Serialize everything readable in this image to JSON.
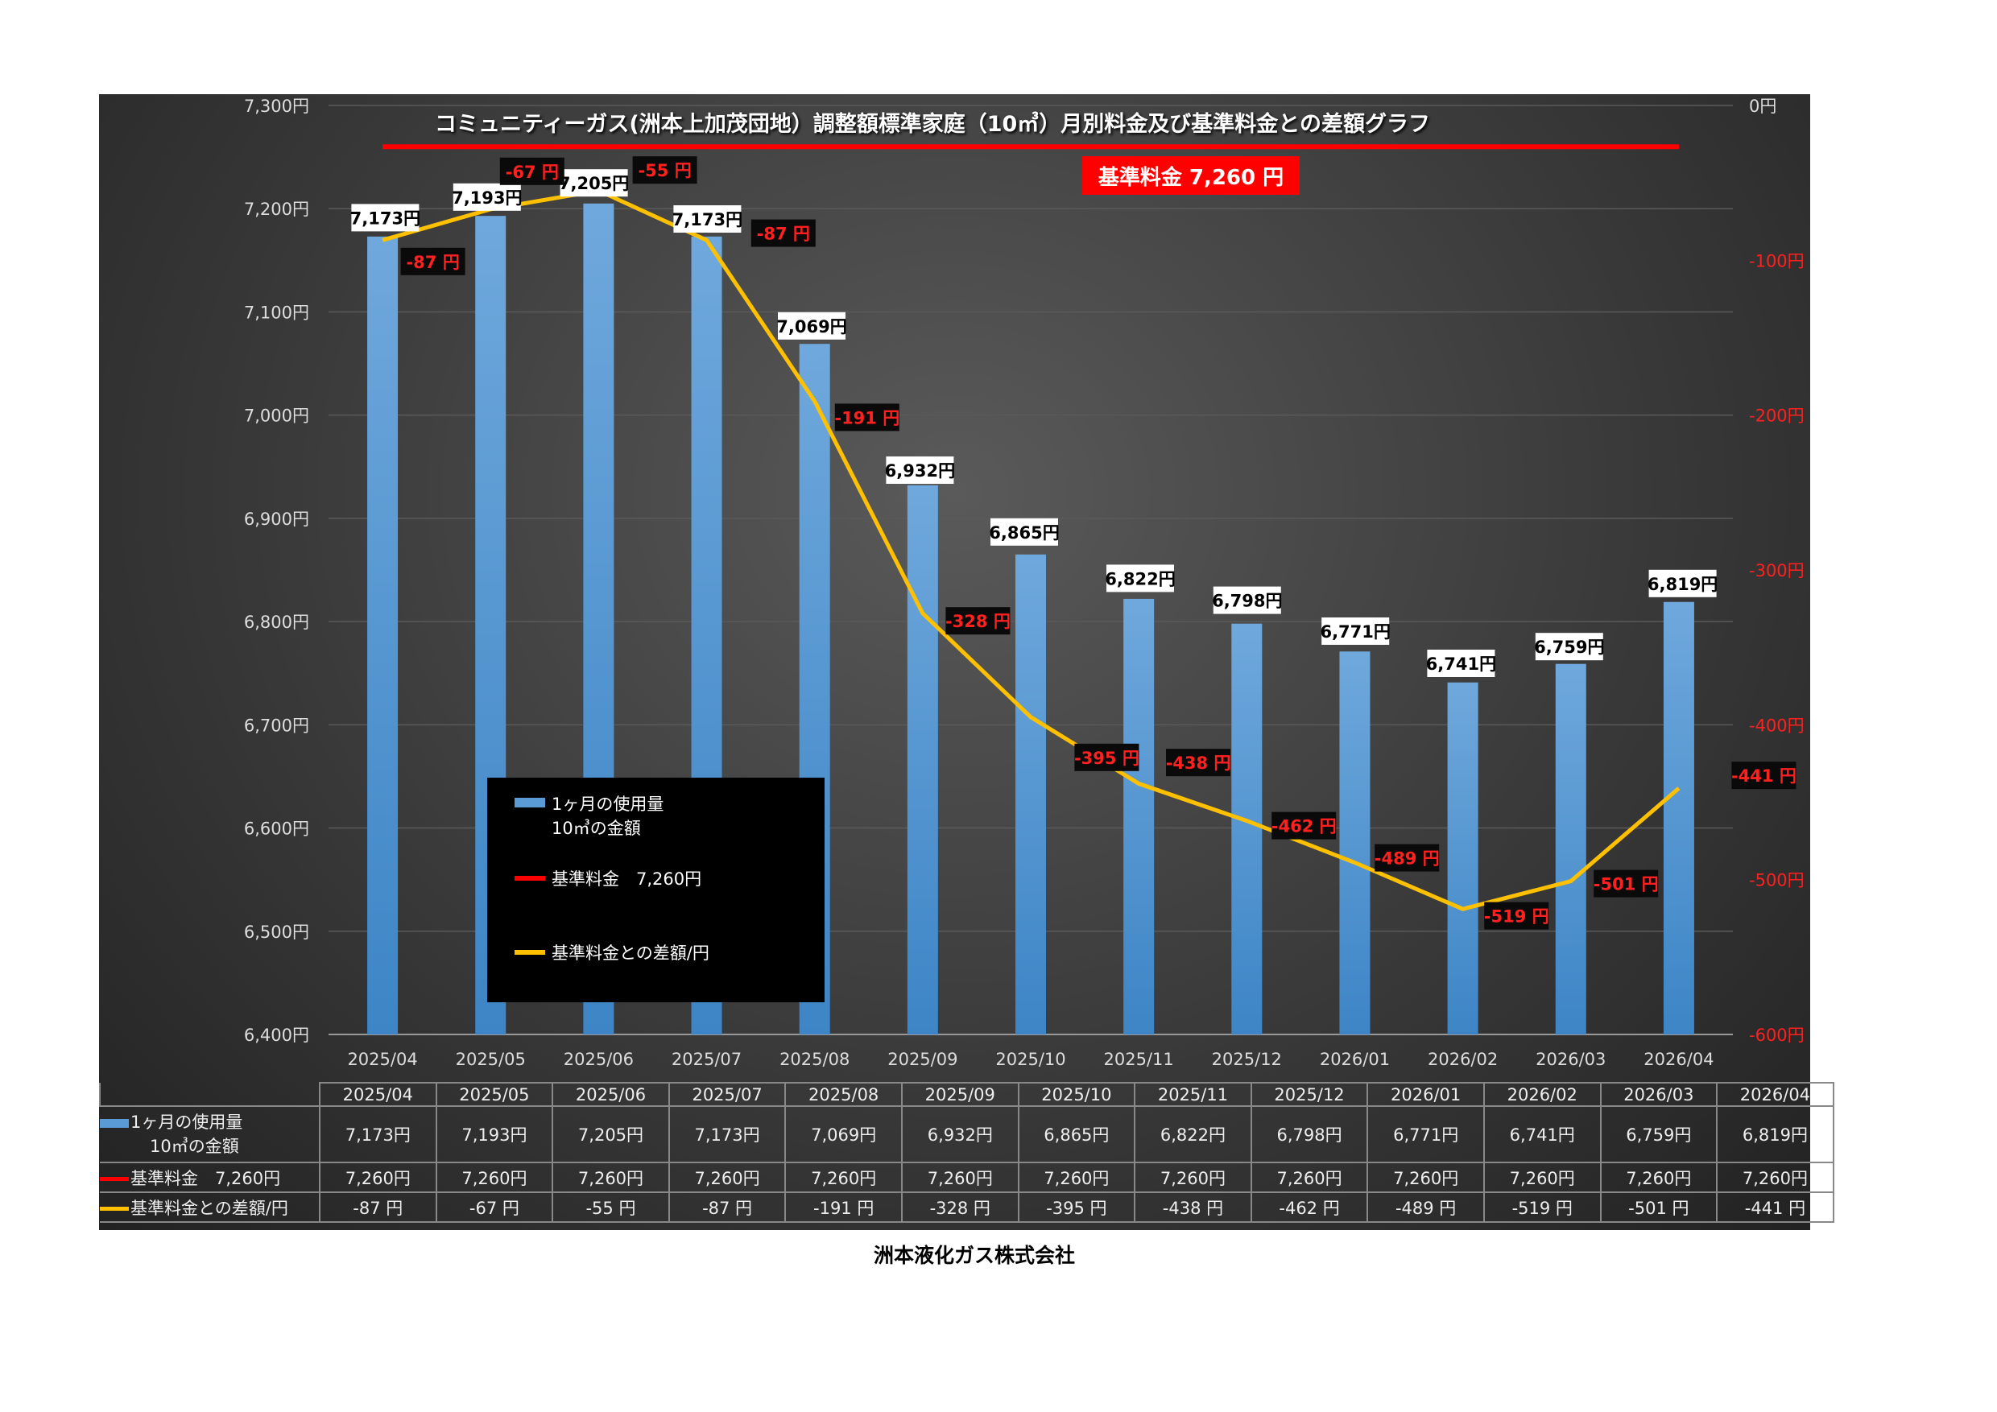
{
  "chart_data": {
    "type": "bar+line",
    "title": "コミュニティーガス(洲本上加茂団地）調整額標準家庭（10㎥）月別料金及び基準料金との差額グラフ",
    "categories": [
      "2025/04",
      "2025/05",
      "2025/06",
      "2025/07",
      "2025/08",
      "2025/09",
      "2025/10",
      "2025/11",
      "2025/12",
      "2026/01",
      "2026/02",
      "2026/03",
      "2026/04"
    ],
    "series": [
      {
        "name": "1ヶ月の使用量 10㎥の金額",
        "type": "bar",
        "axis": "left",
        "color": "#5b9bd5",
        "values": [
          7173,
          7193,
          7205,
          7173,
          7069,
          6932,
          6865,
          6822,
          6798,
          6771,
          6741,
          6759,
          6819
        ],
        "labels": [
          "7,173円",
          "7,193円",
          "7,205円",
          "7,173円",
          "7,069円",
          "6,932円",
          "6,865円",
          "6,822円",
          "6,798円",
          "6,771円",
          "6,741円",
          "6,759円",
          "6,819円"
        ]
      },
      {
        "name": "基準料金　7,260円",
        "type": "line",
        "axis": "left",
        "color": "#ff0000",
        "values": [
          7260,
          7260,
          7260,
          7260,
          7260,
          7260,
          7260,
          7260,
          7260,
          7260,
          7260,
          7260,
          7260
        ],
        "labels": [
          "7,260円",
          "7,260円",
          "7,260円",
          "7,260円",
          "7,260円",
          "7,260円",
          "7,260円",
          "7,260円",
          "7,260円",
          "7,260円",
          "7,260円",
          "7,260円",
          "7,260円"
        ]
      },
      {
        "name": "基準料金との差額/円",
        "type": "line",
        "axis": "right",
        "color": "#ffc000",
        "values": [
          -87,
          -67,
          -55,
          -87,
          -191,
          -328,
          -395,
          -438,
          -462,
          -489,
          -519,
          -501,
          -441
        ],
        "labels": [
          "-87 円",
          "-67 円",
          "-55 円",
          "-87 円",
          "-191 円",
          "-328 円",
          "-395 円",
          "-438 円",
          "-462 円",
          "-489 円",
          "-519 円",
          "-501 円",
          "-441 円"
        ]
      }
    ],
    "left_axis": {
      "ylim": [
        6400,
        7300
      ],
      "ticks": [
        "6,400円",
        "6,500円",
        "6,600円",
        "6,700円",
        "6,800円",
        "6,900円",
        "7,000円",
        "7,100円",
        "7,200円",
        "7,300円"
      ]
    },
    "right_axis": {
      "ylim": [
        -600,
        0
      ],
      "ticks": [
        "-600円",
        "-500円",
        "-400円",
        "-300円",
        "-200円",
        "-100円",
        "0円"
      ]
    },
    "grid": true,
    "legend": "bottom-left inside",
    "annotation": "基準料金  7,260  円"
  },
  "legend": {
    "bar1": "1ヶ月の使用量",
    "bar2": "10㎥の金額",
    "red": "基準料金　7,260円",
    "yellow": "基準料金との差額/円"
  },
  "table": {
    "row_labels": {
      "bar1": "1ヶ月の使用量",
      "bar2": "10㎥の金額",
      "red": "基準料金　7,260円",
      "yellow": "基準料金との差額/円"
    }
  },
  "footer": "洲本液化ガス株式会社"
}
